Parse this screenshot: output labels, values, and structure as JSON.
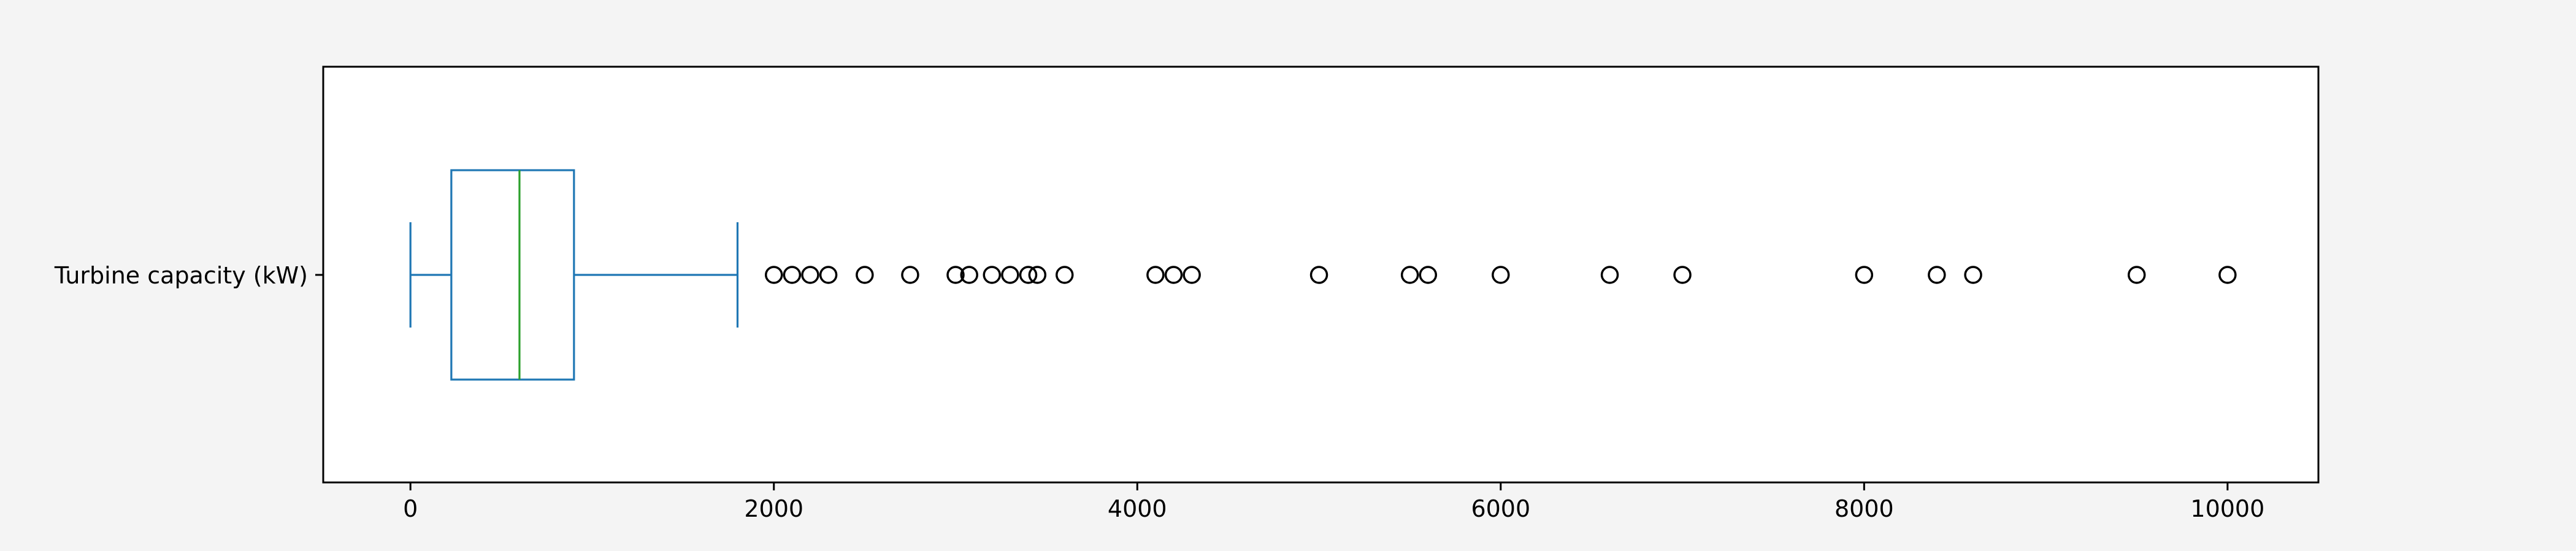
{
  "chart_data": {
    "type": "box",
    "orientation": "horizontal",
    "series": [
      {
        "name": "Turbine capacity (kW)",
        "whisker_low": 0,
        "q1": 225,
        "median": 600,
        "q3": 900,
        "whisker_high": 1800,
        "outliers": [
          2000,
          2100,
          2200,
          2300,
          2500,
          2750,
          3000,
          3075,
          3200,
          3300,
          3400,
          3450,
          3600,
          4100,
          4200,
          4300,
          5000,
          5500,
          5600,
          6000,
          6600,
          7000,
          8000,
          8400,
          8600,
          9500,
          10000
        ]
      }
    ],
    "x_ticks": [
      0,
      2000,
      4000,
      6000,
      8000,
      10000
    ],
    "xlim": [
      -480,
      10500
    ],
    "grid": false,
    "colors": {
      "box": "#1f77b4",
      "median": "#2ca02c",
      "outlier": "#000000",
      "axes": "#000000",
      "background": "#f4f4f4",
      "plot_background": "#ffffff"
    }
  }
}
